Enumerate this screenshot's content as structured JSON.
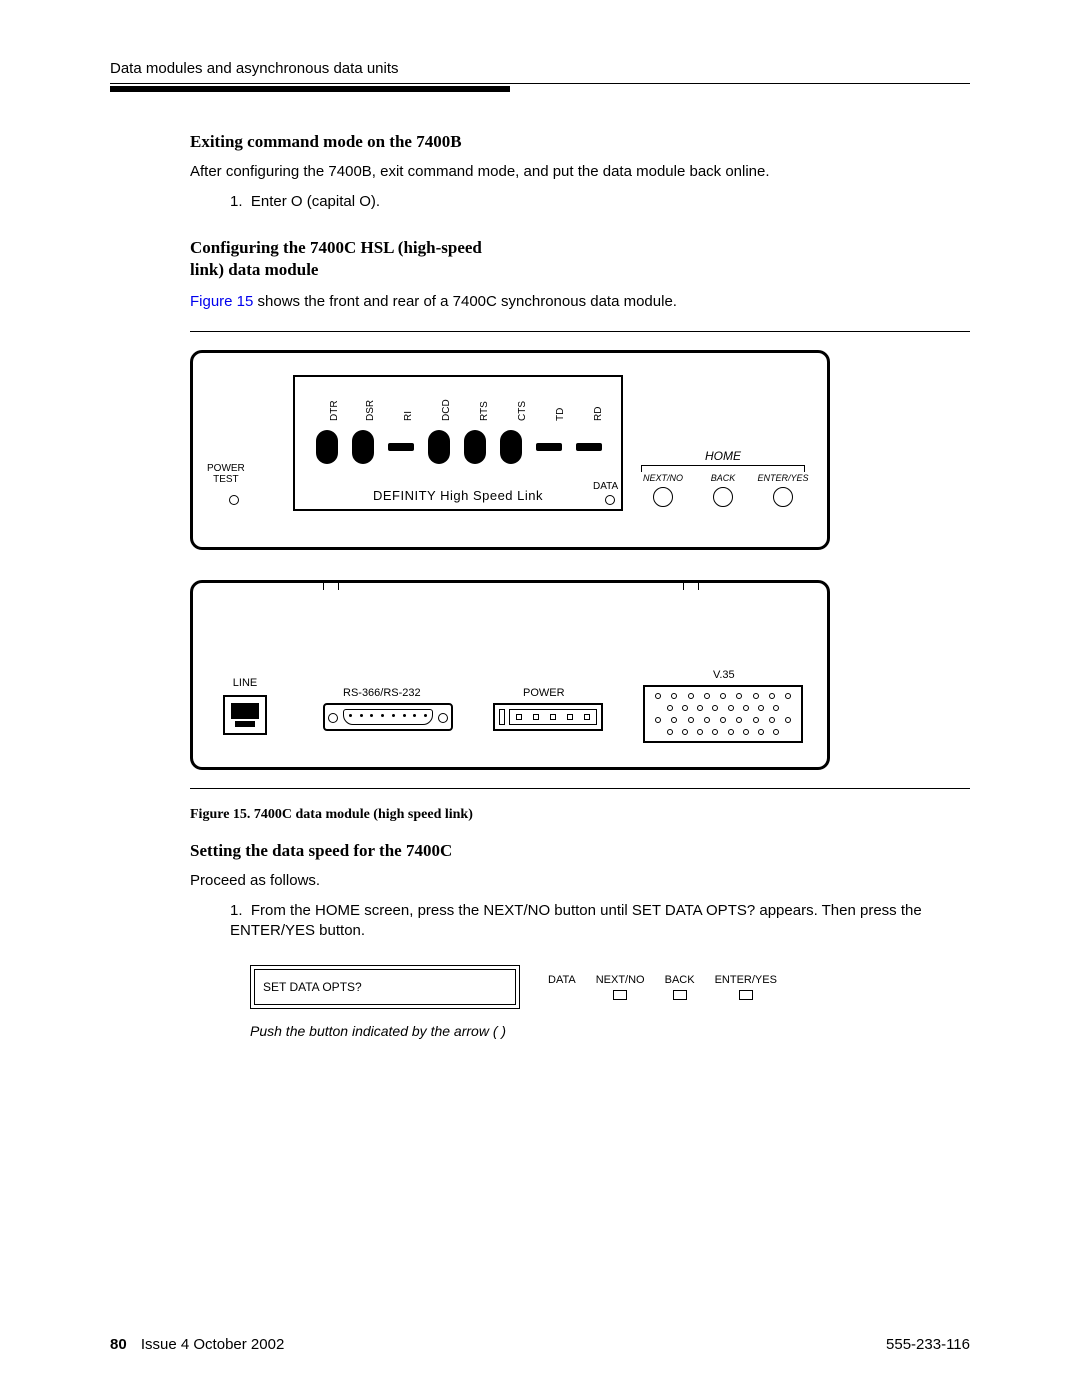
{
  "header": {
    "running": "Data modules and asynchronous data units"
  },
  "s1": {
    "title": "Exiting command mode on the 7400B",
    "p": "After configuring the 7400B, exit command mode, and put the data module back online.",
    "step1": "Enter O (capital O)."
  },
  "s2": {
    "title": "Configuring the 7400C HSL (high-speed link) data module",
    "linktext": "Figure 15",
    "rest": " shows the front and rear of a 7400C synchronous data module."
  },
  "front": {
    "leds": [
      "DTR",
      "DSR",
      "RI",
      "DCD",
      "RTS",
      "CTS",
      "TD",
      "RD"
    ],
    "powertest": "POWER\nTEST",
    "def": "DEFINITY High Speed Link",
    "data": "DATA",
    "home": "HOME",
    "b1": "NEXT/NO",
    "b2": "BACK",
    "b3": "ENTER/YES"
  },
  "rear": {
    "line": "LINE",
    "rs": "RS-366/RS-232",
    "power": "POWER",
    "v35": "V.35"
  },
  "caption": "Figure 15.    7400C data module (high speed link)",
  "s3": {
    "title": "Setting the data speed for the 7400C",
    "p": "Proceed as follows.",
    "step1": "From the HOME screen, press the NEXT/NO button until SET DATA OPTS? appears. Then press the ENTER/YES button."
  },
  "mini": {
    "display": "SET DATA OPTS?",
    "c1": "DATA",
    "c2": "NEXT/NO",
    "c3": "BACK",
    "c4": "ENTER/YES"
  },
  "hint": "Push the button indicated by the arrow (     )",
  "footer": {
    "page": "80",
    "issue": "Issue 4   October 2002",
    "doc": "555-233-116"
  }
}
